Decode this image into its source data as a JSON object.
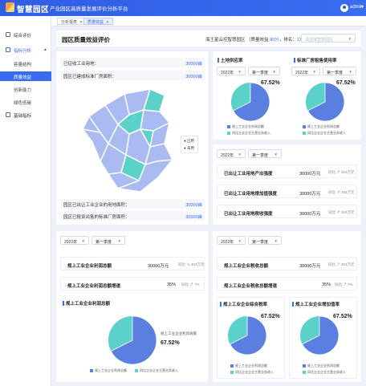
{
  "header": {
    "brand": "智慧园区",
    "platform": "产业园区高质量发展评价分析平台",
    "user": "admin"
  },
  "sidebar": {
    "items": [
      {
        "label": "综合评价",
        "icon": "dashboard-icon"
      },
      {
        "label": "指标分析",
        "icon": "chart-icon"
      },
      {
        "label": "基础指标",
        "icon": "document-icon"
      }
    ],
    "sub_items": [
      {
        "label": "容量结构"
      },
      {
        "label": "质量效益"
      },
      {
        "label": "创新能力"
      },
      {
        "label": "绿色低碳"
      }
    ]
  },
  "tabs": [
    {
      "label": "分析报表"
    },
    {
      "label": "质量效益"
    }
  ],
  "page": {
    "title": "园区质量效益评价",
    "score_prefix": "海王星云控智慧园区 （质量效益 ",
    "score_value": "80分",
    "score_mid": "，排名：",
    "rank_value": "1",
    "score_suffix": "）",
    "park_placeholder": "请选择智慧园区"
  },
  "land": {
    "rows": [
      {
        "label": "已征收工业用地：",
        "value": "30000亩"
      },
      {
        "label": "园区已建成标准厂房面积：",
        "value": "30000亩"
      }
    ],
    "bottom_rows": [
      {
        "label": "园区已出让工业企业的用地面积：",
        "value": "30000亩"
      },
      {
        "label": "园区已租赁出售的标准厂房面积：",
        "value": "30000亩"
      }
    ],
    "legend": [
      "已用",
      "未用"
    ],
    "colors": {
      "used": "#5ad1c9",
      "unused": "#a9bbf0"
    }
  },
  "filters": {
    "year": "2022年",
    "quarter": "第一季度"
  },
  "pies": {
    "land_out": {
      "title": "土地供应率",
      "percent": "67.52%",
      "legend": [
        "规上工业企业利润总额",
        "同比企业企业主营业务收入"
      ]
    },
    "factory": {
      "title": "标准厂房租售使用率",
      "percent": "67.52%",
      "legend": [
        "规上工业企业利润总额",
        "同比企业企业主营业务收入"
      ]
    },
    "profit": {
      "title": "规上工业企业利润总额",
      "percent": "67.52%",
      "slice_label": "规上工业企业利润总额",
      "legend": [
        "规上工业企业利润总额",
        "同比企业企业主营业务收入"
      ]
    },
    "tax": {
      "title": "规上工业企业综合税率",
      "percent": "67.52%",
      "legend": [
        "规上工业企业利润总额",
        "同比企业企业主营业务收入"
      ]
    },
    "added": {
      "title": "规上工业企业增加值率",
      "percent": "67.52%",
      "legend": [
        "规上工业企业利润总额",
        "同比企业企业主营业务收入"
      ]
    }
  },
  "density": {
    "rows": [
      {
        "label": "已出让工业用地产出强度",
        "value": "30000万元",
        "yoy": "同比",
        "change": "304万元",
        "dir": "up"
      },
      {
        "label": "已出让工业用地增加值强度",
        "value": "30000万元",
        "yoy": "同比",
        "change": "304万元",
        "dir": "up"
      },
      {
        "label": "已出让工业用地税收强度",
        "value": "30000万元",
        "yoy": "同比",
        "change": "304万元",
        "dir": "up"
      }
    ]
  },
  "profit_rows": [
    {
      "label": "规上工业企业利润总额",
      "value": "30000万元",
      "yoy": "同比",
      "change": "304万元",
      "dir": "down"
    },
    {
      "label": "规上工业企业利润总额增速",
      "value": "35%",
      "yoy": "同比",
      "change": "7%",
      "dir": "up"
    }
  ],
  "tax_rows": [
    {
      "label": "规上工业企业税收总额",
      "value": "30000万元",
      "yoy": "同比",
      "change": "304万元",
      "dir": "up"
    },
    {
      "label": "规上工业企业税收总额增速",
      "value": "35%",
      "yoy": "同比",
      "change": "7%",
      "dir": "up"
    }
  ],
  "colors": {
    "primary": "#3a6cf0",
    "pie_main": "#5b7fe0",
    "pie_secondary": "#5ad1c9"
  }
}
